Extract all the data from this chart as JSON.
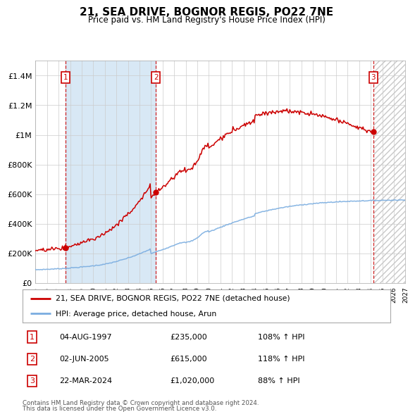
{
  "title": "21, SEA DRIVE, BOGNOR REGIS, PO22 7NE",
  "subtitle": "Price paid vs. HM Land Registry's House Price Index (HPI)",
  "xlim": [
    1995.0,
    2027.0
  ],
  "ylim": [
    0,
    1500000
  ],
  "yticks": [
    0,
    200000,
    400000,
    600000,
    800000,
    1000000,
    1200000,
    1400000
  ],
  "ytick_labels": [
    "£0",
    "£200K",
    "£400K",
    "£600K",
    "£800K",
    "£1M",
    "£1.2M",
    "£1.4M"
  ],
  "xticks": [
    1995,
    1996,
    1997,
    1998,
    1999,
    2000,
    2001,
    2002,
    2003,
    2004,
    2005,
    2006,
    2007,
    2008,
    2009,
    2010,
    2011,
    2012,
    2013,
    2014,
    2015,
    2016,
    2017,
    2018,
    2019,
    2020,
    2021,
    2022,
    2023,
    2024,
    2025,
    2026,
    2027
  ],
  "sale_dates": [
    1997.586,
    2005.416,
    2024.22
  ],
  "sale_prices": [
    235000,
    615000,
    1020000
  ],
  "sale_labels": [
    "1",
    "2",
    "3"
  ],
  "legend_line1": "21, SEA DRIVE, BOGNOR REGIS, PO22 7NE (detached house)",
  "legend_line2": "HPI: Average price, detached house, Arun",
  "table_entries": [
    {
      "num": "1",
      "date": "04-AUG-1997",
      "price": "£235,000",
      "hpi": "108% ↑ HPI"
    },
    {
      "num": "2",
      "date": "02-JUN-2005",
      "price": "£615,000",
      "hpi": "118% ↑ HPI"
    },
    {
      "num": "3",
      "date": "22-MAR-2024",
      "price": "£1,020,000",
      "hpi": "88% ↑ HPI"
    }
  ],
  "footnote1": "Contains HM Land Registry data © Crown copyright and database right 2024.",
  "footnote2": "This data is licensed under the Open Government Licence v3.0.",
  "red_color": "#cc0000",
  "blue_color": "#7aade0",
  "bg_shaded": "#d8e8f5",
  "grid_color": "#cccccc",
  "future_cutoff": 2024.22,
  "t_start": 1995.0,
  "t_end": 2027.0
}
